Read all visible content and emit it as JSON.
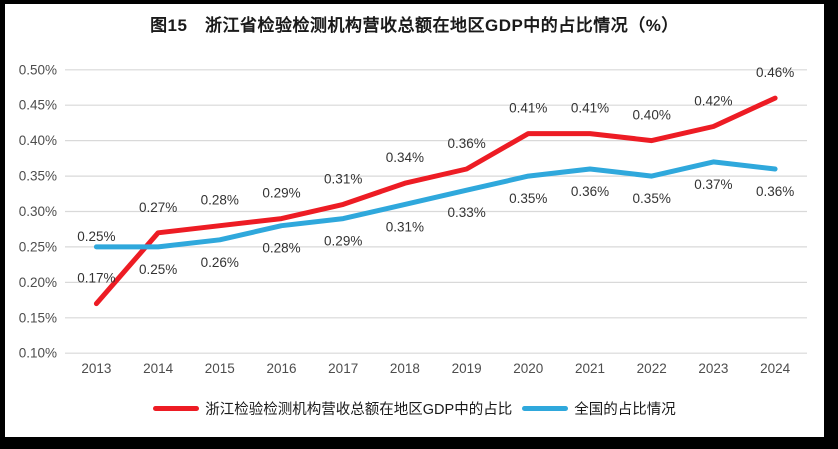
{
  "frame": {
    "border_color": "#000000",
    "background_color": "#ffffff"
  },
  "chart_data": {
    "type": "line",
    "title": "图15　浙江省检验检测机构营收总额在地区GDP中的占比情况（%）",
    "categories": [
      "2013",
      "2014",
      "2015",
      "2016",
      "2017",
      "2018",
      "2019",
      "2020",
      "2021",
      "2022",
      "2023",
      "2024"
    ],
    "xlabel": "",
    "ylabel": "",
    "ylim": [
      0.1,
      0.5
    ],
    "y_step": 0.05,
    "grid": true,
    "gridline_color": "#d9d9d9",
    "y_ticks": [
      {
        "value": 0.5,
        "label": "0.50%"
      },
      {
        "value": 0.45,
        "label": "0.45%"
      },
      {
        "value": 0.4,
        "label": "0.40%"
      },
      {
        "value": 0.35,
        "label": "0.35%"
      },
      {
        "value": 0.3,
        "label": "0.30%"
      },
      {
        "value": 0.25,
        "label": "0.25%"
      },
      {
        "value": 0.2,
        "label": "0.20%"
      },
      {
        "value": 0.15,
        "label": "0.15%"
      },
      {
        "value": 0.1,
        "label": "0.10%"
      }
    ],
    "legend_position": "bottom",
    "series": [
      {
        "name": "浙江检验检测机构营收总额在地区GDP中的占比",
        "color": "#ED1C24",
        "values": [
          0.17,
          0.27,
          0.28,
          0.29,
          0.31,
          0.34,
          0.36,
          0.41,
          0.41,
          0.4,
          0.42,
          0.46
        ],
        "labels": [
          "0.17%",
          "0.27%",
          "0.28%",
          "0.29%",
          "0.31%",
          "0.34%",
          "0.36%",
          "0.41%",
          "0.41%",
          "0.40%",
          "0.42%",
          "0.46%"
        ],
        "label_position": "above",
        "label_position_overrides": {}
      },
      {
        "name": "全国的占比情况",
        "color": "#2FA8DC",
        "values": [
          0.25,
          0.25,
          0.26,
          0.28,
          0.29,
          0.31,
          0.33,
          0.35,
          0.36,
          0.35,
          0.37,
          0.36
        ],
        "labels": [
          "0.25%",
          "0.25%",
          "0.26%",
          "0.28%",
          "0.29%",
          "0.31%",
          "0.33%",
          "0.35%",
          "0.36%",
          "0.35%",
          "0.37%",
          "0.36%"
        ],
        "label_position": "below",
        "label_position_overrides": {
          "0": "above_close"
        }
      }
    ]
  }
}
